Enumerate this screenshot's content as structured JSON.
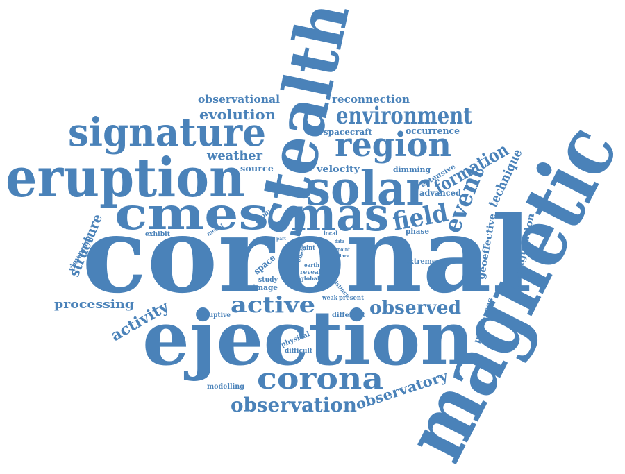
{
  "word_color": "#4a82b9",
  "background": "#ffffff",
  "words": [
    "coronal",
    "magnetic",
    "ejection",
    "stealth",
    "eruption",
    "solar",
    "cmes",
    "mas",
    "signature",
    "region",
    "environment",
    "corona",
    "observation",
    "field",
    "event",
    "active",
    "observed",
    "formation",
    "technique",
    "observatory",
    "structure",
    "activity",
    "processing",
    "evolution",
    "observational",
    "reconnection",
    "weather",
    "velocity",
    "occurrence",
    "spacecraft",
    "dimming",
    "source",
    "extensive",
    "advanced",
    "configuration",
    "geoeffective",
    "processes",
    "viewpoint",
    "exhibit",
    "profile",
    "model",
    "local",
    "phase",
    "part",
    "data",
    "faint",
    "effect",
    "point",
    "flare",
    "space",
    "earth",
    "reveal",
    "global",
    "study",
    "image",
    "distinct",
    "extreme",
    "present",
    "weak",
    "eruptive",
    "different",
    "physical",
    "difficult",
    "modelling"
  ]
}
